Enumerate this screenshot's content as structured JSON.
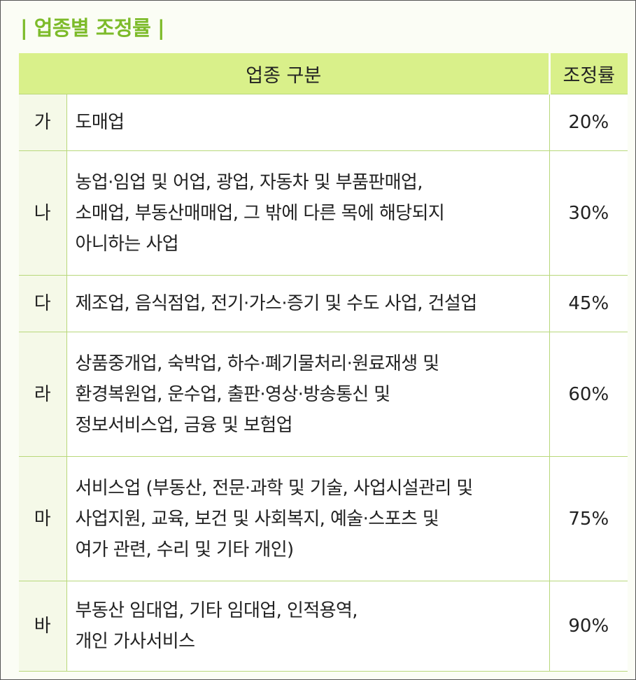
{
  "title": "| 업종별 조정률 |",
  "table": {
    "headers": {
      "category": "업종 구분",
      "rate": "조정률"
    },
    "rows": [
      {
        "code": "가",
        "lines": [
          "도매업"
        ],
        "rate": "20%"
      },
      {
        "code": "나",
        "lines": [
          "농업·임업 및 어업, 광업, 자동차 및 부품판매업,",
          "소매업, 부동산매매업, 그 밖에 다른 목에 해당되지",
          "아니하는 사업"
        ],
        "rate": "30%"
      },
      {
        "code": "다",
        "lines": [
          "제조업, 음식점업, 전기·가스·증기 및 수도 사업, 건설업"
        ],
        "rate": "45%"
      },
      {
        "code": "라",
        "lines": [
          "상품중개업, 숙박업, 하수·폐기물처리·원료재생 및",
          "환경복원업, 운수업, 출판·영상·방송통신 및",
          "정보서비스업, 금융 및 보험업"
        ],
        "rate": "60%"
      },
      {
        "code": "마",
        "lines": [
          "서비스업 (부동산, 전문·과학 및 기술, 사업시설관리 및",
          "사업지원, 교육, 보건 및 사회복지, 예술·스포츠 및",
          "여가 관련, 수리 및 기타 개인)"
        ],
        "rate": "75%"
      },
      {
        "code": "바",
        "lines": [
          "부동산 임대업, 기타 임대업, 인적용역,",
          "개인 가사서비스"
        ],
        "rate": "90%"
      }
    ]
  },
  "colors": {
    "accent": "#7dbb2a",
    "header_bg": "#d9f08a",
    "border": "#b8d87a"
  }
}
